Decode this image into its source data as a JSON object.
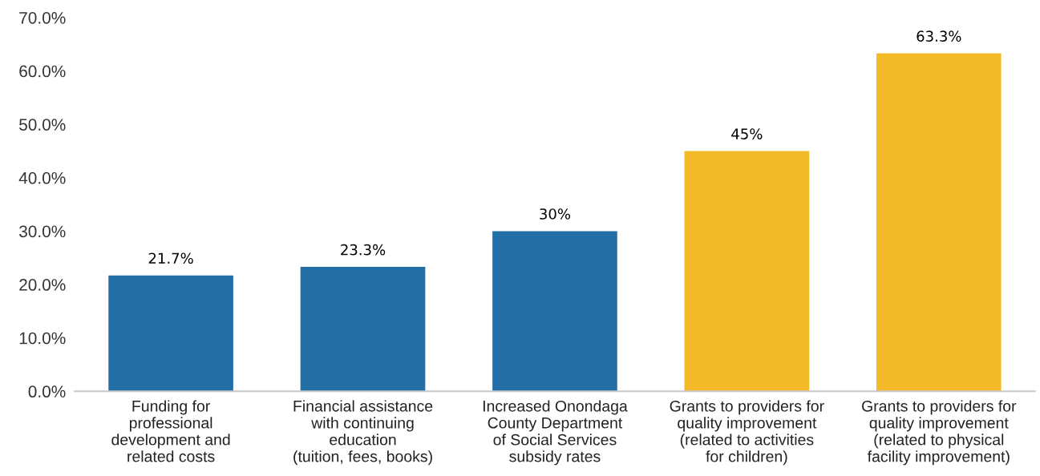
{
  "chart_data": {
    "type": "bar",
    "categories": [
      "Funding for\nprofessional\ndevelopment and\nrelated costs",
      "Financial assistance\nwith continuing\neducation\n(tuition, fees, books)",
      "Increased Onondaga\nCounty Department\nof Social Services\nsubsidy rates",
      "Grants to providers for\nquality improvement\n(related to activities\nfor children)",
      "Grants to providers for\nquality improvement\n(related to physical\nfacility improvement)"
    ],
    "values": [
      21.7,
      23.3,
      30,
      45,
      63.3
    ],
    "colors": [
      "#226fa8",
      "#226fa8",
      "#226fa8",
      "#f4b927",
      "#f4b927"
    ],
    "value_labels": [
      "21.7%",
      "23.3%",
      "30%",
      "45%",
      "63.3%"
    ],
    "ylim": [
      0,
      70
    ],
    "yticks": [
      {
        "value": 0,
        "label": "0.0%"
      },
      {
        "value": 10,
        "label": "10.0%"
      },
      {
        "value": 20,
        "label": "20.0%"
      },
      {
        "value": 30,
        "label": "30.0%"
      },
      {
        "value": 40,
        "label": "40.0%"
      },
      {
        "value": 50,
        "label": "50.0%"
      },
      {
        "value": 60,
        "label": "60.0%"
      },
      {
        "value": 70,
        "label": "70.0%"
      }
    ],
    "grid": false,
    "legend": false
  }
}
